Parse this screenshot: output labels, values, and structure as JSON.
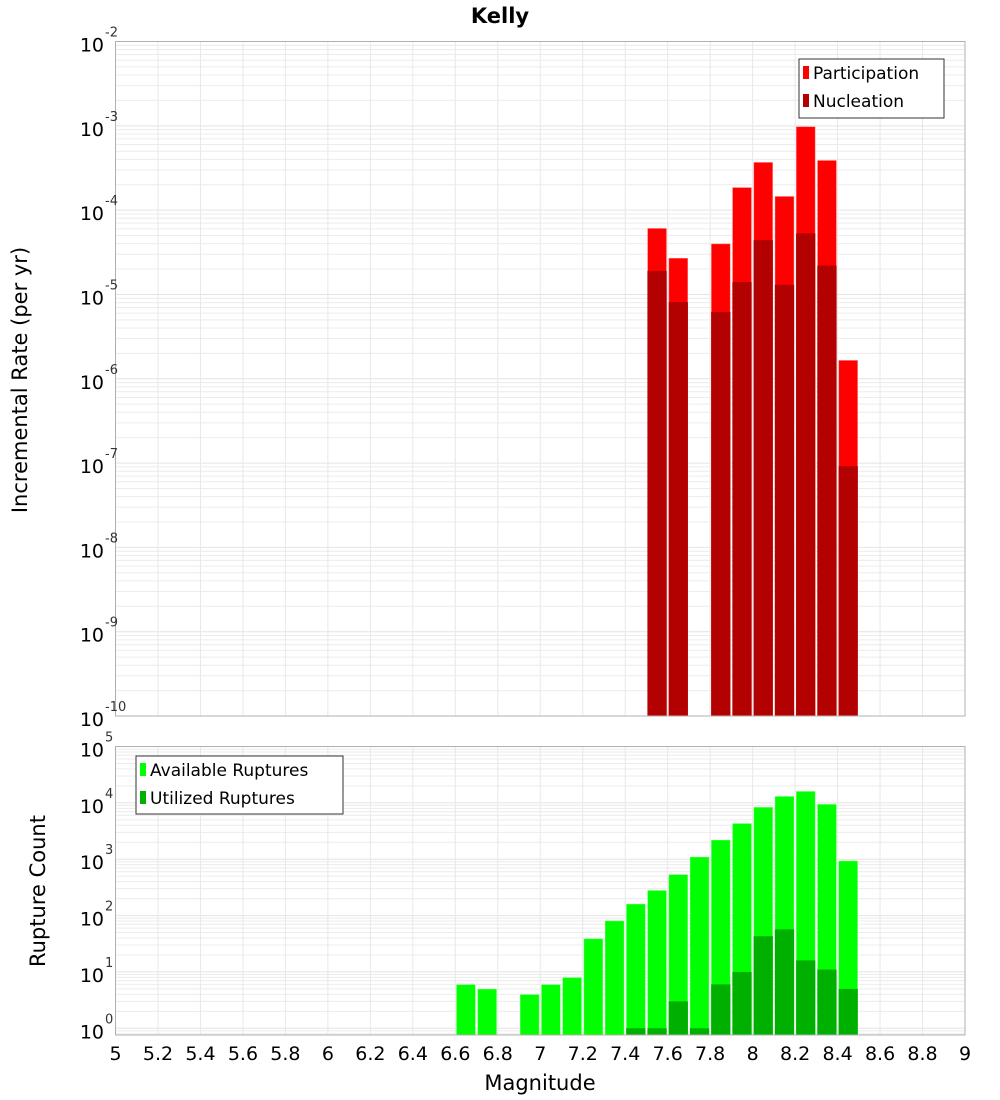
{
  "chart_data": [
    {
      "type": "bar",
      "title": "Kelly",
      "xlabel": "Magnitude",
      "ylabel": "Incremental Rate (per yr)",
      "yscale": "log",
      "xlim": [
        5,
        9
      ],
      "ylim": [
        1e-10,
        0.01
      ],
      "bin_width": 0.1,
      "legend_position": "top-right",
      "grid": true,
      "x": [
        7.55,
        7.65,
        7.85,
        7.95,
        8.05,
        8.15,
        8.25,
        8.35,
        8.45
      ],
      "series": [
        {
          "name": "Participation",
          "color": "#ff0000",
          "values": [
            6.1e-05,
            2.7e-05,
            4e-05,
            0.000186,
            0.00037,
            0.000146,
            0.00098,
            0.00039,
            1.66e-06
          ]
        },
        {
          "name": "Nucleation",
          "color": "#b30000",
          "values": [
            1.9e-05,
            8.1e-06,
            6.2e-06,
            1.4e-05,
            4.4e-05,
            1.3e-05,
            5.3e-05,
            2.2e-05,
            9.2e-08
          ]
        }
      ],
      "ytick_exponents": [
        "-2",
        "-3",
        "-4",
        "-5",
        "-6",
        "-7",
        "-8",
        "-9",
        "-10"
      ]
    },
    {
      "type": "bar",
      "xlabel": "Magnitude",
      "ylabel": "Rupture Count",
      "yscale": "log",
      "xlim": [
        5,
        9
      ],
      "ylim": [
        0.76,
        100000.0
      ],
      "bin_width": 0.1,
      "legend_position": "top-left",
      "grid": true,
      "x": [
        6.65,
        6.75,
        6.95,
        7.05,
        7.15,
        7.25,
        7.35,
        7.45,
        7.55,
        7.65,
        7.75,
        7.85,
        7.95,
        8.05,
        8.15,
        8.25,
        8.35,
        8.45
      ],
      "series": [
        {
          "name": "Available Ruptures",
          "color": "#00ff00",
          "values": [
            6,
            5,
            4,
            6,
            8,
            39,
            81,
            161,
            281,
            537,
            1100,
            2200,
            4330,
            8400,
            13100,
            16100,
            9490,
            938
          ]
        },
        {
          "name": "Utilized Ruptures",
          "color": "#00b000",
          "values": [
            0,
            0,
            0,
            0,
            0,
            0,
            0,
            1,
            1,
            3,
            1,
            6,
            10,
            43,
            57,
            16,
            11,
            5
          ]
        }
      ],
      "ytick_exponents": [
        "5",
        "4",
        "3",
        "2",
        "1",
        "0"
      ]
    }
  ],
  "xticks": [
    "5",
    "5.2",
    "5.4",
    "5.6",
    "5.8",
    "6",
    "6.2",
    "6.4",
    "6.6",
    "6.8",
    "7",
    "7.2",
    "7.4",
    "7.6",
    "7.8",
    "8",
    "8.2",
    "8.4",
    "8.6",
    "8.8",
    "9"
  ]
}
